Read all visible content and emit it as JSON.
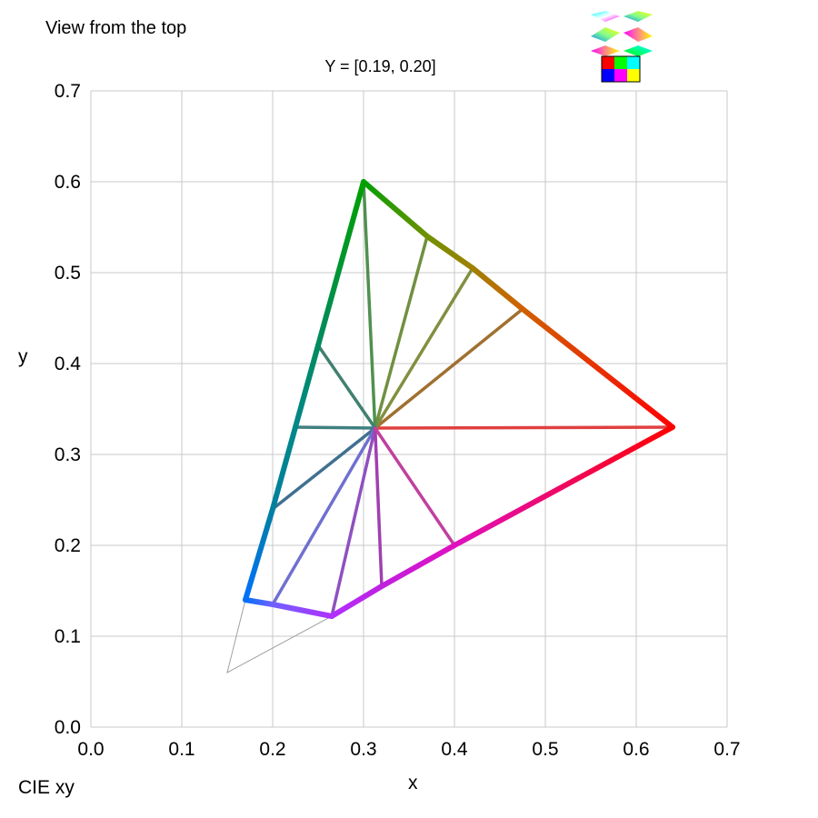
{
  "header": {
    "view_label": "View from the top",
    "subtitle": "Y = [0.19, 0.20]",
    "colorspace_label": "CIE xy"
  },
  "chart_data": {
    "type": "line",
    "xlabel": "x",
    "ylabel": "y",
    "xlim": [
      0,
      0.7
    ],
    "ylim": [
      0,
      0.7
    ],
    "x_ticks": [
      "0.0",
      "0.1",
      "0.2",
      "0.3",
      "0.4",
      "0.5",
      "0.6",
      "0.7"
    ],
    "y_ticks": [
      "0.0",
      "0.1",
      "0.2",
      "0.3",
      "0.4",
      "0.5",
      "0.6",
      "0.7"
    ],
    "grid": true,
    "white_point": [
      0.3127,
      0.329
    ],
    "gamut_boundary": [
      {
        "x": 0.64,
        "y": 0.33,
        "color": "#ff0000"
      },
      {
        "x": 0.475,
        "y": 0.46,
        "color": "#d06000"
      },
      {
        "x": 0.42,
        "y": 0.505,
        "color": "#a08000"
      },
      {
        "x": 0.37,
        "y": 0.54,
        "color": "#709000"
      },
      {
        "x": 0.3,
        "y": 0.6,
        "color": "#00a000"
      },
      {
        "x": 0.25,
        "y": 0.42,
        "color": "#008a60"
      },
      {
        "x": 0.225,
        "y": 0.33,
        "color": "#008888"
      },
      {
        "x": 0.2,
        "y": 0.24,
        "color": "#0080a0"
      },
      {
        "x": 0.17,
        "y": 0.14,
        "color": "#0070ff"
      },
      {
        "x": 0.2,
        "y": 0.135,
        "color": "#7060ff"
      },
      {
        "x": 0.265,
        "y": 0.122,
        "color": "#b030ff"
      },
      {
        "x": 0.32,
        "y": 0.155,
        "color": "#c020e0"
      },
      {
        "x": 0.4,
        "y": 0.2,
        "color": "#e010c0"
      },
      {
        "x": 0.64,
        "y": 0.33,
        "color": "#ff0000"
      }
    ],
    "spokes": [
      {
        "x": 0.64,
        "y": 0.33,
        "color": "#e04040"
      },
      {
        "x": 0.475,
        "y": 0.46,
        "color": "#a07030"
      },
      {
        "x": 0.42,
        "y": 0.505,
        "color": "#809040"
      },
      {
        "x": 0.37,
        "y": 0.54,
        "color": "#709040"
      },
      {
        "x": 0.3,
        "y": 0.6,
        "color": "#509050"
      },
      {
        "x": 0.25,
        "y": 0.42,
        "color": "#408070"
      },
      {
        "x": 0.225,
        "y": 0.33,
        "color": "#408080"
      },
      {
        "x": 0.2,
        "y": 0.24,
        "color": "#407090"
      },
      {
        "x": 0.2,
        "y": 0.135,
        "color": "#7070d0"
      },
      {
        "x": 0.265,
        "y": 0.122,
        "color": "#9050c0"
      },
      {
        "x": 0.32,
        "y": 0.155,
        "color": "#a040b0"
      },
      {
        "x": 0.4,
        "y": 0.2,
        "color": "#c040a0"
      }
    ],
    "reference_triangle": [
      {
        "x": 0.17,
        "y": 0.14
      },
      {
        "x": 0.15,
        "y": 0.06
      },
      {
        "x": 0.265,
        "y": 0.122
      }
    ]
  }
}
